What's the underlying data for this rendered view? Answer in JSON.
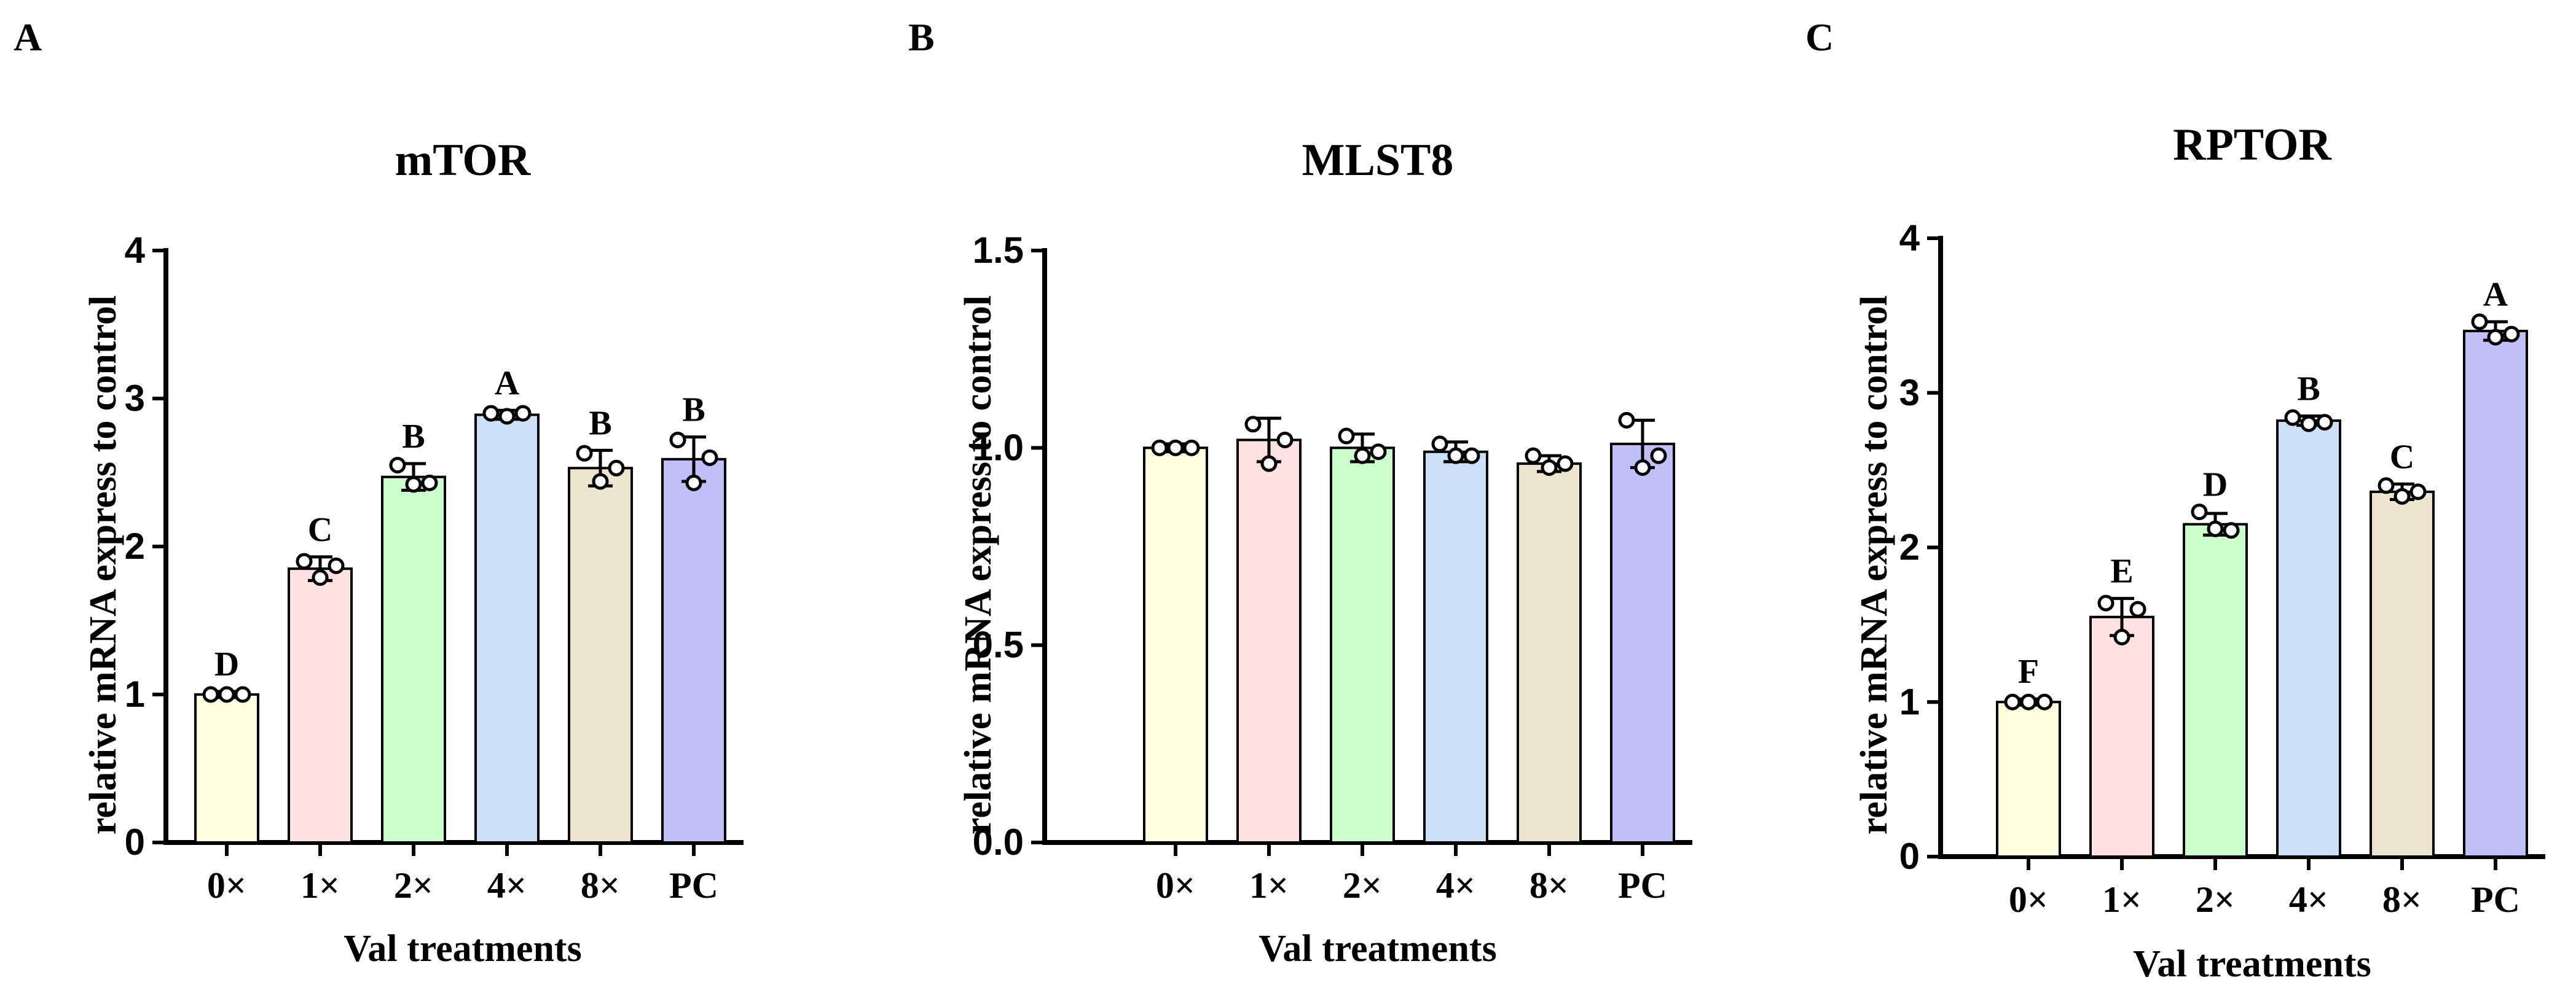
{
  "chart_data": [
    {
      "panel": "A",
      "type": "bar",
      "title": "mTOR",
      "xlabel": "Val treatments",
      "ylabel": "relative mRNA express to control",
      "ylim": [
        0,
        4
      ],
      "yticks": [
        "0",
        "1",
        "2",
        "3",
        "4"
      ],
      "ytick_values": [
        0,
        1,
        2,
        3,
        4
      ],
      "categories": [
        "0×",
        "1×",
        "2×",
        "4×",
        "8×",
        "PC"
      ],
      "values": [
        1.0,
        1.85,
        2.47,
        2.89,
        2.53,
        2.59
      ],
      "errors": [
        0.02,
        0.08,
        0.09,
        0.03,
        0.12,
        0.15
      ],
      "points": [
        [
          1.0,
          1.0,
          1.0
        ],
        [
          1.9,
          1.79,
          1.87
        ],
        [
          2.55,
          2.42,
          2.43
        ],
        [
          2.9,
          2.88,
          2.9
        ],
        [
          2.63,
          2.44,
          2.53
        ],
        [
          2.72,
          2.43,
          2.6
        ]
      ],
      "significance": [
        "D",
        "C",
        "B",
        "A",
        "B",
        "B"
      ],
      "colors": [
        "#ffffe0",
        "#ffe1e1",
        "#ccffcc",
        "#cce0fa",
        "#ece4cc",
        "#c1bff8"
      ]
    },
    {
      "panel": "B",
      "type": "bar",
      "title": "MLST8",
      "xlabel": "Val treatments",
      "ylabel": "relative mRNA express to control",
      "ylim": [
        0,
        1.5
      ],
      "yticks": [
        "0.0",
        "0.5",
        "1.0",
        "1.5"
      ],
      "ytick_values": [
        0,
        0.5,
        1.0,
        1.5
      ],
      "categories": [
        "0×",
        "1×",
        "2×",
        "4×",
        "8×",
        "PC"
      ],
      "values": [
        1.0,
        1.02,
        1.0,
        0.99,
        0.96,
        1.01
      ],
      "errors": [
        0.01,
        0.055,
        0.035,
        0.025,
        0.02,
        0.06
      ],
      "points": [
        [
          1.0,
          1.0,
          1.0
        ],
        [
          1.06,
          0.96,
          1.02
        ],
        [
          1.03,
          0.98,
          0.99
        ],
        [
          1.01,
          0.98,
          0.98
        ],
        [
          0.98,
          0.95,
          0.96
        ],
        [
          1.07,
          0.95,
          0.98
        ]
      ],
      "significance": [
        "",
        "",
        "",
        "",
        "",
        ""
      ],
      "colors": [
        "#ffffe0",
        "#ffe1e1",
        "#ccffcc",
        "#cce0fa",
        "#ece4cc",
        "#c1bff8"
      ]
    },
    {
      "panel": "C",
      "type": "bar",
      "title": "RPTOR",
      "xlabel": "Val treatments",
      "ylabel": "relative mRNA express to control",
      "ylim": [
        0,
        4
      ],
      "yticks": [
        "0",
        "1",
        "2",
        "3",
        "4"
      ],
      "ytick_values": [
        0,
        1,
        2,
        3,
        4
      ],
      "categories": [
        "0×",
        "1×",
        "2×",
        "4×",
        "8×",
        "PC"
      ],
      "values": [
        1.0,
        1.55,
        2.15,
        2.82,
        2.36,
        3.4
      ],
      "errors": [
        0.02,
        0.12,
        0.07,
        0.03,
        0.05,
        0.06
      ],
      "points": [
        [
          1.0,
          1.0,
          1.0
        ],
        [
          1.64,
          1.42,
          1.6
        ],
        [
          2.23,
          2.12,
          2.11
        ],
        [
          2.84,
          2.8,
          2.81
        ],
        [
          2.4,
          2.33,
          2.36
        ],
        [
          3.46,
          3.36,
          3.38
        ]
      ],
      "significance": [
        "F",
        "E",
        "D",
        "B",
        "C",
        "A"
      ],
      "colors": [
        "#ffffe0",
        "#ffe1e1",
        "#ccffcc",
        "#cce0fa",
        "#ece4cc",
        "#c1bff8"
      ]
    }
  ]
}
